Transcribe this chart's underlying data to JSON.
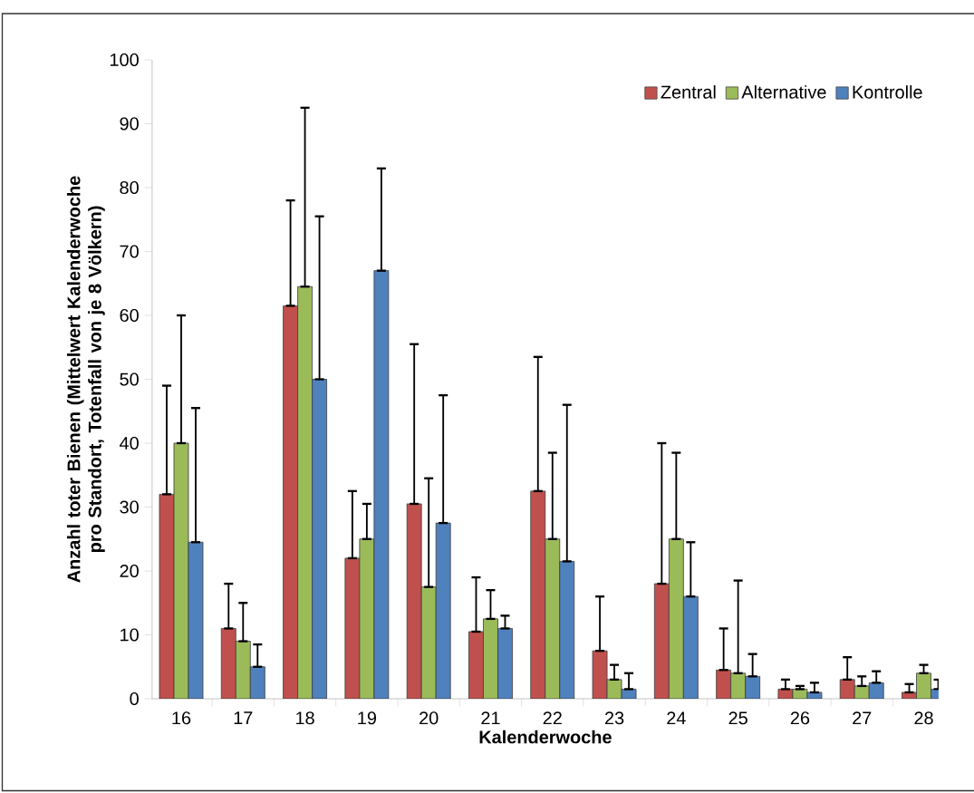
{
  "chart_data": {
    "type": "bar",
    "xlabel": "Kalenderwoche",
    "ylabel": "Anzahl toter Bienen (Mittelwert Kalenderwoche pro Standort, Totenfall von je  8 Völkern)",
    "categories": [
      "16",
      "17",
      "18",
      "19",
      "20",
      "21",
      "22",
      "23",
      "24",
      "25",
      "26",
      "27",
      "28"
    ],
    "series": [
      {
        "name": "Zentral",
        "color": "#c0504d",
        "values": [
          32,
          11,
          61.5,
          22,
          30.5,
          10.5,
          32.5,
          7.5,
          18,
          4.5,
          1.5,
          3,
          1
        ],
        "errors": [
          [
            32,
            49
          ],
          [
            11,
            18
          ],
          [
            61.5,
            78
          ],
          [
            22,
            32.5
          ],
          [
            30.5,
            55.5
          ],
          [
            10.5,
            19
          ],
          [
            32.5,
            53.5
          ],
          [
            7.5,
            16
          ],
          [
            18,
            40
          ],
          [
            4.5,
            11
          ],
          [
            1.5,
            3
          ],
          [
            3,
            6.5
          ],
          [
            1,
            2.3
          ]
        ]
      },
      {
        "name": "Alternative",
        "color": "#9bbb59",
        "values": [
          40,
          9,
          64.5,
          25,
          17.5,
          12.5,
          25,
          3,
          25,
          4,
          1.5,
          2,
          4
        ],
        "errors": [
          [
            40,
            60
          ],
          [
            9,
            15
          ],
          [
            64.5,
            92.5
          ],
          [
            25,
            30.5
          ],
          [
            17.5,
            34.5
          ],
          [
            12.5,
            17
          ],
          [
            25,
            38.5
          ],
          [
            3,
            5.3
          ],
          [
            25,
            38.5
          ],
          [
            4,
            18.5
          ],
          [
            1.5,
            2
          ],
          [
            2,
            3.5
          ],
          [
            4,
            5.3
          ]
        ]
      },
      {
        "name": "Kontrolle",
        "color": "#4f81bd",
        "values": [
          24.5,
          5,
          50,
          67,
          27.5,
          11,
          21.5,
          1.5,
          16,
          3.5,
          1,
          2.5,
          1.5
        ],
        "errors": [
          [
            24.5,
            45.5
          ],
          [
            5,
            8.5
          ],
          [
            50,
            75.5
          ],
          [
            67,
            83
          ],
          [
            27.5,
            47.5
          ],
          [
            11,
            13
          ],
          [
            21.5,
            46
          ],
          [
            1.5,
            4
          ],
          [
            16,
            24.5
          ],
          [
            3.5,
            7
          ],
          [
            1,
            2.5
          ],
          [
            2.5,
            4.3
          ],
          [
            1.5,
            3
          ]
        ]
      }
    ],
    "ylim": [
      0,
      100
    ],
    "yticks": [
      0,
      10,
      20,
      30,
      40,
      50,
      60,
      70,
      80,
      90,
      100
    ],
    "grid": false,
    "legend": "top right"
  }
}
